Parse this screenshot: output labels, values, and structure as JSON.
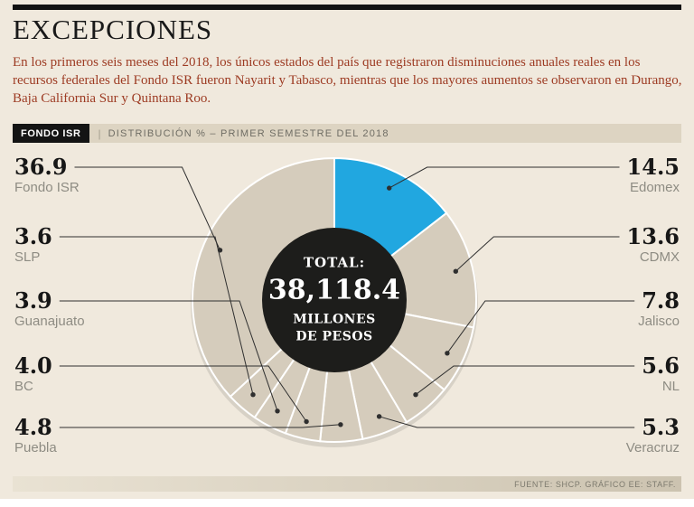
{
  "header": {
    "title": "EXCEPCIONES",
    "intro": "En los primeros seis meses del 2018, los únicos estados del país que registraron disminuciones anuales reales en los recursos federales del Fondo ISR fueron Nayarit y Tabasco, mientras que los mayores aumentos se observaron en Durango, Baja California Sur y Quintana Roo."
  },
  "strip": {
    "tag": "FONDO ISR",
    "separator": "|",
    "subtitle": "DISTRIBUCIÓN % – PRIMER SEMESTRE DEL 2018"
  },
  "chart_data": {
    "type": "pie",
    "donut": true,
    "title": "FONDO ISR",
    "subtitle": "DISTRIBUCIÓN % – PRIMER SEMESTRE DEL 2018",
    "unit": "%",
    "total_value": 38118.4,
    "center": {
      "label": "TOTAL:",
      "value": "38,118.4",
      "unit_line1": "MILLONES",
      "unit_line2": "DE PESOS"
    },
    "colors": {
      "default_slice": "#d5ccbc",
      "highlight_slice": "#21a7e0",
      "hole": "#1d1d1b",
      "divider": "#ffffff",
      "leader": "#2f2f2f"
    },
    "slices": [
      {
        "name": "Edomex",
        "value": 14.5,
        "display": "14.5",
        "color": "#21a7e0",
        "side": "right",
        "row": 0
      },
      {
        "name": "CDMX",
        "value": 13.6,
        "display": "13.6",
        "color": "#d5ccbc",
        "side": "right",
        "row": 1
      },
      {
        "name": "Jalisco",
        "value": 7.8,
        "display": "7.8",
        "color": "#d5ccbc",
        "side": "right",
        "row": 2
      },
      {
        "name": "NL",
        "value": 5.6,
        "display": "5.6",
        "color": "#d5ccbc",
        "side": "right",
        "row": 3
      },
      {
        "name": "Veracruz",
        "value": 5.3,
        "display": "5.3",
        "color": "#d5ccbc",
        "side": "right",
        "row": 4
      },
      {
        "name": "Puebla",
        "value": 4.8,
        "display": "4.8",
        "color": "#d5ccbc",
        "side": "left",
        "row": 4
      },
      {
        "name": "BC",
        "value": 4.0,
        "display": "4.0",
        "color": "#d5ccbc",
        "side": "left",
        "row": 3
      },
      {
        "name": "Guanajuato",
        "value": 3.9,
        "display": "3.9",
        "color": "#d5ccbc",
        "side": "left",
        "row": 2
      },
      {
        "name": "SLP",
        "value": 3.6,
        "display": "3.6",
        "color": "#d5ccbc",
        "side": "left",
        "row": 1
      },
      {
        "name": "Fondo ISR",
        "value": 36.9,
        "display": "36.9",
        "color": "#d5ccbc",
        "side": "left",
        "row": 0
      }
    ]
  },
  "footer": {
    "source": "FUENTE: SHCP. GRÁFICO EE: STAFF."
  }
}
